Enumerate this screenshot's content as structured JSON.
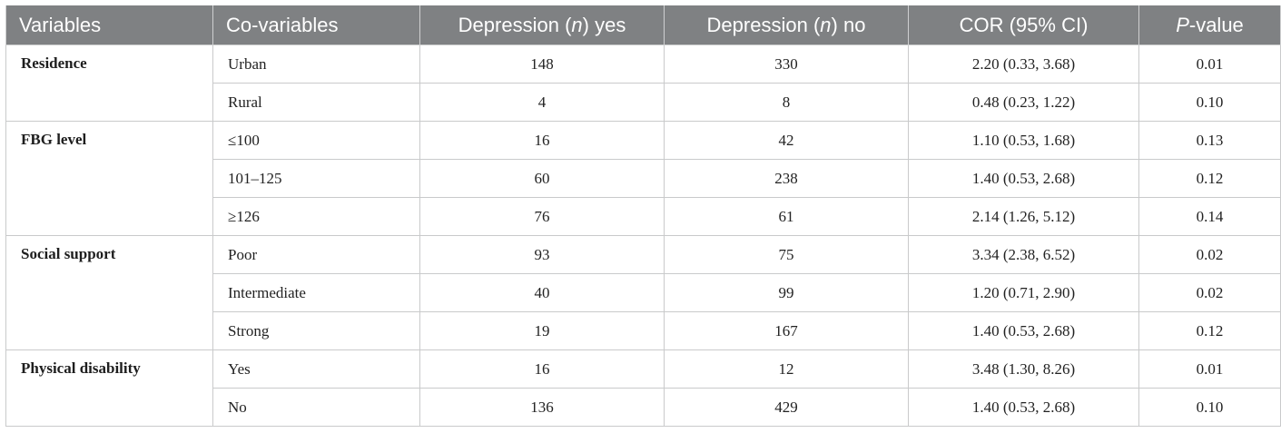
{
  "table": {
    "headers": [
      {
        "pre": "Variables",
        "ital": "",
        "post": ""
      },
      {
        "pre": "Co-variables",
        "ital": "",
        "post": ""
      },
      {
        "pre": "Depression (",
        "ital": "n",
        "post": ") yes"
      },
      {
        "pre": "Depression (",
        "ital": "n",
        "post": ") no"
      },
      {
        "pre": "COR (95% CI)",
        "ital": "",
        "post": ""
      },
      {
        "pre": "",
        "ital": "P",
        "post": "-value"
      }
    ],
    "groups": [
      {
        "variable": "Residence",
        "rows": [
          {
            "covariable": "Urban",
            "yes": "148",
            "no": "330",
            "cor": "2.20 (0.33, 3.68)",
            "p": "0.01"
          },
          {
            "covariable": "Rural",
            "yes": "4",
            "no": "8",
            "cor": "0.48 (0.23, 1.22)",
            "p": "0.10"
          }
        ]
      },
      {
        "variable": "FBG level",
        "rows": [
          {
            "covariable": "≤100",
            "yes": "16",
            "no": "42",
            "cor": "1.10 (0.53, 1.68)",
            "p": "0.13"
          },
          {
            "covariable": "101–125",
            "yes": "60",
            "no": "238",
            "cor": "1.40 (0.53, 2.68)",
            "p": "0.12"
          },
          {
            "covariable": "≥126",
            "yes": "76",
            "no": "61",
            "cor": "2.14 (1.26, 5.12)",
            "p": "0.14"
          }
        ]
      },
      {
        "variable": "Social support",
        "rows": [
          {
            "covariable": "Poor",
            "yes": "93",
            "no": "75",
            "cor": "3.34 (2.38, 6.52)",
            "p": "0.02"
          },
          {
            "covariable": "Intermediate",
            "yes": "40",
            "no": "99",
            "cor": "1.20 (0.71, 2.90)",
            "p": "0.02"
          },
          {
            "covariable": "Strong",
            "yes": "19",
            "no": "167",
            "cor": "1.40 (0.53, 2.68)",
            "p": "0.12"
          }
        ]
      },
      {
        "variable": "Physical disability",
        "rows": [
          {
            "covariable": "Yes",
            "yes": "16",
            "no": "12",
            "cor": "3.48 (1.30, 8.26)",
            "p": "0.01"
          },
          {
            "covariable": "No",
            "yes": "136",
            "no": "429",
            "cor": "1.40 (0.53, 2.68)",
            "p": "0.10"
          }
        ]
      }
    ]
  },
  "colors": {
    "header_bg": "#7f8183",
    "header_text": "#ffffff",
    "grid": "#c9cacb"
  }
}
